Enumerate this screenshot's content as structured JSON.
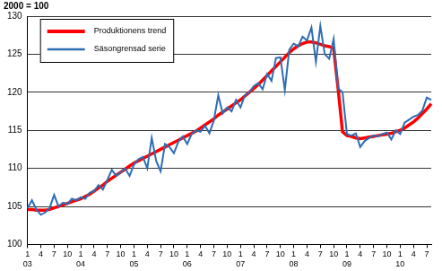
{
  "chart_data": {
    "type": "line",
    "ylabel": "2000 = 100",
    "categories": [
      [
        "1",
        "03"
      ],
      null,
      null,
      "4",
      null,
      null,
      "7",
      null,
      null,
      "10",
      null,
      null,
      [
        "1",
        "04"
      ],
      null,
      null,
      "4",
      null,
      null,
      "7",
      null,
      null,
      "10",
      null,
      null,
      [
        "1",
        "05"
      ],
      null,
      null,
      "4",
      null,
      null,
      "7",
      null,
      null,
      "10",
      null,
      null,
      [
        "1",
        "06"
      ],
      null,
      null,
      "4",
      null,
      null,
      "7",
      null,
      null,
      "10",
      null,
      null,
      [
        "1",
        "07"
      ],
      null,
      null,
      "4",
      null,
      null,
      "7",
      null,
      null,
      "10",
      null,
      null,
      [
        "1",
        "08"
      ],
      null,
      null,
      "4",
      null,
      null,
      "7",
      null,
      null,
      "10",
      null,
      null,
      [
        "1",
        "09"
      ],
      null,
      null,
      "4",
      null,
      null,
      "7",
      null,
      null,
      "10",
      null,
      null,
      [
        "1",
        "10"
      ],
      null,
      null,
      "4",
      null,
      null,
      "7",
      null
    ],
    "series": [
      {
        "name": "Produktionens trend",
        "color": "#ff0000",
        "values": [
          104.6,
          104.6,
          104.5,
          104.5,
          104.5,
          104.6,
          104.8,
          105.0,
          105.2,
          105.4,
          105.6,
          105.8,
          106.0,
          106.3,
          106.6,
          107.0,
          107.4,
          107.8,
          108.3,
          108.7,
          109.1,
          109.5,
          109.9,
          110.3,
          110.7,
          111.0,
          111.3,
          111.6,
          111.9,
          112.2,
          112.5,
          112.8,
          113.1,
          113.4,
          113.7,
          114.0,
          114.3,
          114.6,
          114.9,
          115.3,
          115.7,
          116.1,
          116.5,
          117.0,
          117.4,
          117.8,
          118.2,
          118.6,
          119.0,
          119.5,
          120.0,
          120.5,
          121.0,
          121.6,
          122.2,
          122.8,
          123.4,
          124.0,
          124.6,
          125.2,
          125.7,
          126.1,
          126.4,
          126.6,
          126.6,
          126.5,
          126.3,
          126.1,
          126.0,
          125.8,
          120.5,
          114.8,
          114.3,
          114.2,
          114.0,
          113.9,
          114.0,
          114.1,
          114.2,
          114.3,
          114.4,
          114.5,
          114.6,
          114.8,
          115.0,
          115.3,
          115.7,
          116.1,
          116.6,
          117.2,
          117.8,
          118.5
        ]
      },
      {
        "name": "Säsongrensad serie",
        "color": "#2e6db4",
        "values": [
          104.8,
          105.8,
          104.6,
          103.9,
          104.2,
          104.8,
          106.5,
          105.0,
          105.5,
          105.3,
          106.0,
          105.8,
          106.2,
          106.0,
          106.8,
          107.0,
          107.8,
          107.2,
          108.5,
          109.8,
          109.0,
          109.5,
          110.0,
          109.0,
          110.5,
          111.2,
          111.5,
          110.0,
          114.0,
          111.0,
          109.6,
          113.2,
          112.8,
          112.0,
          113.5,
          114.2,
          113.2,
          114.5,
          115.0,
          114.8,
          115.6,
          114.6,
          116.3,
          119.6,
          117.2,
          118.0,
          117.5,
          119.0,
          118.0,
          119.6,
          120.0,
          120.8,
          121.2,
          120.4,
          122.4,
          121.5,
          124.5,
          124.6,
          120.3,
          125.6,
          126.4,
          126.0,
          127.3,
          126.8,
          128.5,
          124.0,
          128.7,
          125.0,
          124.4,
          127.0,
          120.5,
          120.0,
          114.5,
          114.3,
          114.6,
          112.8,
          113.6,
          114.0,
          114.3,
          114.2,
          114.5,
          114.7,
          113.8,
          115.0,
          114.5,
          116.0,
          116.4,
          116.8,
          117.0,
          117.6,
          119.3,
          119.0
        ]
      }
    ],
    "ylim": [
      100,
      130
    ],
    "yticks": [
      100,
      105,
      110,
      115,
      120,
      125,
      130
    ],
    "grid": true,
    "legend": "upper left"
  }
}
